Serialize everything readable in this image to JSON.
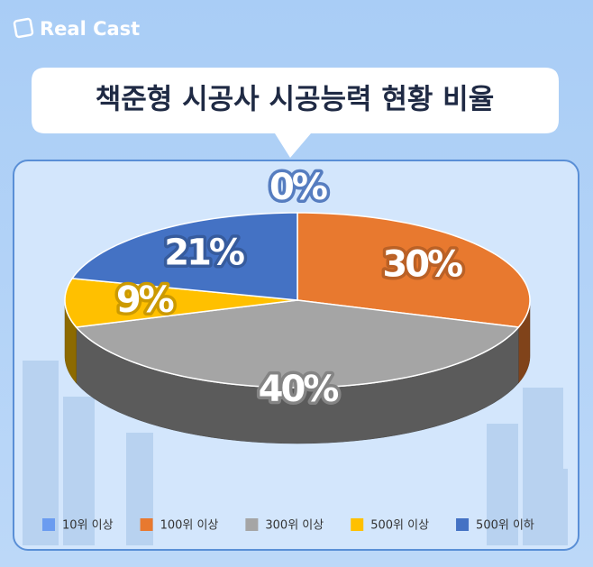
{
  "brand": "Real Cast",
  "chart_data": {
    "type": "pie3d",
    "title": "책준형 시공사 시공능력 현황 비율",
    "categories": [
      "10위 이상",
      "100위 이상",
      "300위 이상",
      "500위 이상",
      "500위 이하"
    ],
    "values": [
      0,
      30,
      40,
      9,
      21
    ],
    "value_labels": [
      "0%",
      "30%",
      "40%",
      "9%",
      "21%"
    ],
    "colors": [
      "#6b9cf0",
      "#e8792f",
      "#a5a5a5",
      "#ffc000",
      "#4472c4"
    ],
    "legend": "bottom"
  }
}
